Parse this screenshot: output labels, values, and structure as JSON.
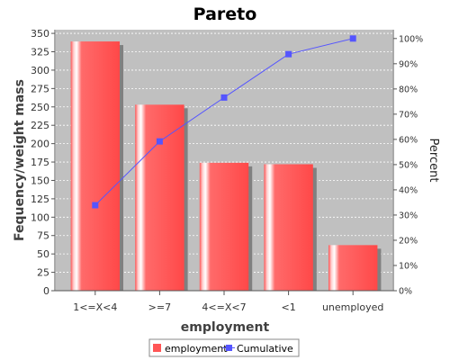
{
  "chart_data": {
    "type": "bar",
    "title": "Pareto",
    "xlabel": "employment",
    "ylabel": "Fequency/weight mass",
    "y2label": "Percent",
    "categories": [
      "1<=X<4",
      ">=7",
      "4<=X<7",
      "<1",
      "unemployed"
    ],
    "ylim": [
      0,
      355
    ],
    "yticks": [
      0,
      25,
      50,
      75,
      100,
      125,
      150,
      175,
      200,
      225,
      250,
      275,
      300,
      325,
      350
    ],
    "y2lim": [
      0,
      1.035
    ],
    "y2ticks": [
      "0%",
      "10%",
      "20%",
      "30%",
      "40%",
      "50%",
      "60%",
      "70%",
      "80%",
      "90%",
      "100%"
    ],
    "series": [
      {
        "name": "employment",
        "type": "bar",
        "color": "#ff5555",
        "values": [
          339,
          253,
          174,
          172,
          62
        ]
      },
      {
        "name": "Cumulative",
        "type": "line",
        "color": "#5555ff",
        "axis": "right",
        "values": [
          0.339,
          0.592,
          0.766,
          0.938,
          1.0
        ]
      }
    ],
    "grid": true,
    "legend": "bottom",
    "plot_background": "#c0c0c0"
  }
}
